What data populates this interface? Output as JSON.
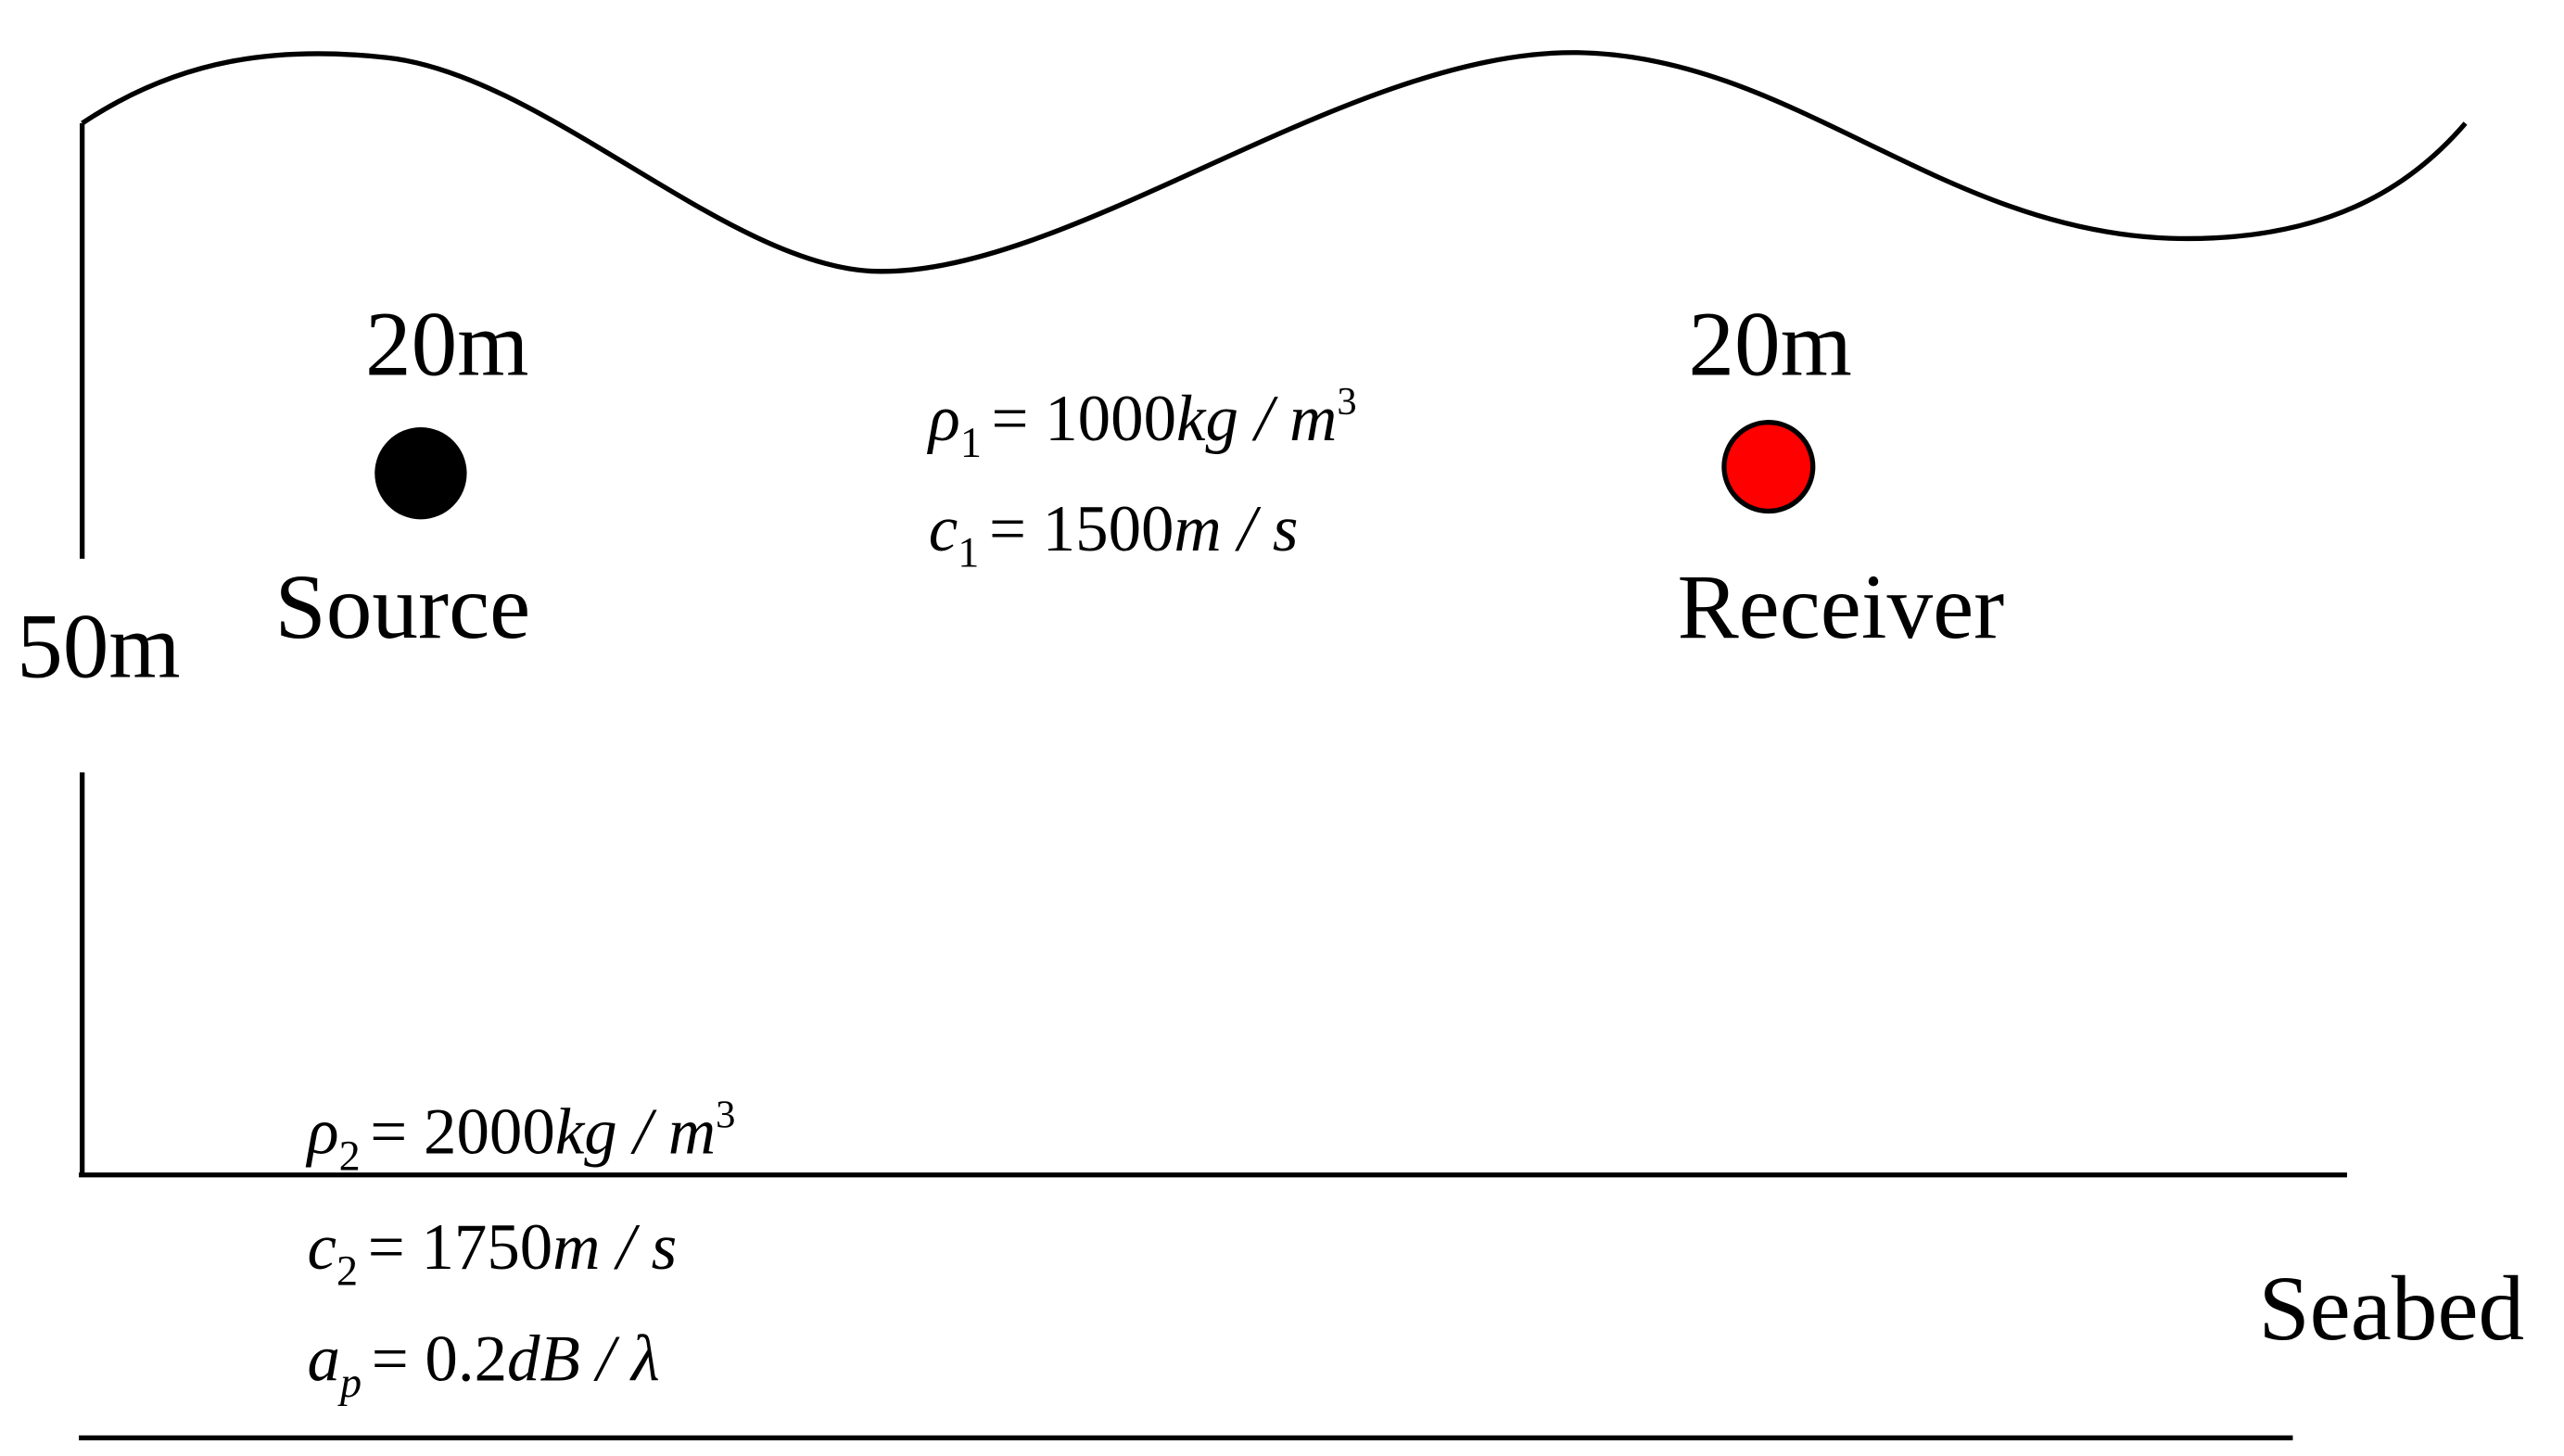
{
  "source": {
    "depth": "20m",
    "label": "Source"
  },
  "receiver": {
    "depth": "20m",
    "label": "Receiver"
  },
  "water_depth": "50m",
  "seabed_label": "Seabed",
  "water": {
    "formulas": [
      {
        "symbol": "ρ",
        "sub": "1",
        "value": "= 1000",
        "unit": "kg / m",
        "sup": "3"
      },
      {
        "symbol": "c",
        "sub": "1",
        "value": "= 1500",
        "unit": "m / s"
      }
    ]
  },
  "seabed": {
    "formulas": [
      {
        "symbol": "ρ",
        "sub": "2",
        "value": "= 2000",
        "unit": "kg / m",
        "sup": "3"
      },
      {
        "symbol": "c",
        "sub": "2",
        "value": "= 1750",
        "unit": "m / s"
      },
      {
        "symbol": "a",
        "sub": "p",
        "value": "= 0.2",
        "unit": "dB / λ"
      }
    ]
  }
}
